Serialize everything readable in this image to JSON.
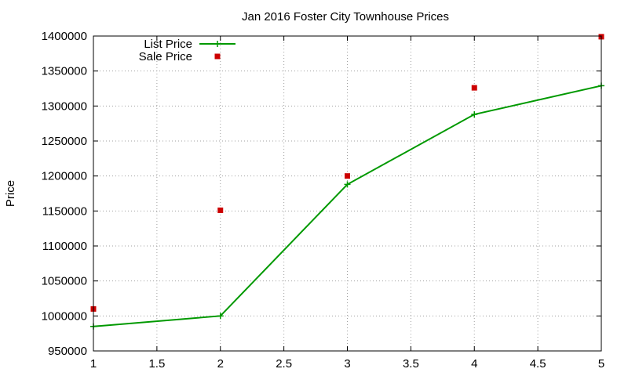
{
  "chart_data": {
    "type": "line",
    "title": "Jan 2016 Foster City Townhouse Prices",
    "xlabel": "",
    "ylabel": "Price",
    "xlim": [
      1,
      5
    ],
    "ylim": [
      950000,
      1400000
    ],
    "xticks": [
      "1",
      "1.5",
      "2",
      "2.5",
      "3",
      "3.5",
      "4",
      "4.5",
      "5"
    ],
    "xtick_values": [
      1,
      1.5,
      2,
      2.5,
      3,
      3.5,
      4,
      4.5,
      5
    ],
    "yticks": [
      "950000",
      "1000000",
      "1050000",
      "1100000",
      "1150000",
      "1200000",
      "1250000",
      "1300000",
      "1350000",
      "1400000"
    ],
    "ytick_values": [
      950000,
      1000000,
      1050000,
      1100000,
      1150000,
      1200000,
      1250000,
      1300000,
      1350000,
      1400000
    ],
    "grid": true,
    "legend_position": "top-left",
    "series": [
      {
        "name": "List Price",
        "style": "line-plus",
        "color": "#009900",
        "x": [
          1,
          2,
          3,
          4,
          5
        ],
        "y": [
          985000,
          1000000,
          1188000,
          1288000,
          1329000
        ]
      },
      {
        "name": "Sale Price",
        "style": "square-points",
        "color": "#cc0000",
        "x": [
          1,
          2,
          3,
          4,
          5
        ],
        "y": [
          1010000,
          1151000,
          1200000,
          1326000,
          1399000
        ]
      }
    ]
  }
}
